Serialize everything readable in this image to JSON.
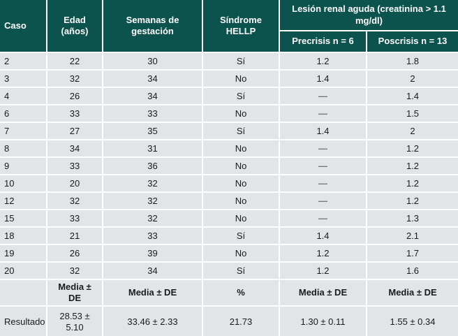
{
  "table": {
    "column_keys": [
      "caso",
      "edad",
      "semanas",
      "hellp",
      "precrisis",
      "poscrisis"
    ],
    "header": {
      "caso": "Caso",
      "edad": "Edad (años)",
      "semanas": "Semanas de gestación",
      "hellp": "Síndrome HELLP",
      "lesion_group": "Lesión renal aguda (creatinina > 1.1 mg/dl)",
      "precrisis": "Precrisis n = 6",
      "poscrisis": "Poscrisis n = 13"
    },
    "missing_symbol": "—",
    "rows": [
      [
        "2",
        "22",
        "30",
        "Sí",
        "1.2",
        "1.8"
      ],
      [
        "3",
        "32",
        "34",
        "No",
        "1.4",
        "2"
      ],
      [
        "4",
        "26",
        "34",
        "Sí",
        "—",
        "1.4"
      ],
      [
        "6",
        "33",
        "33",
        "No",
        "—",
        "1.5"
      ],
      [
        "7",
        "27",
        "35",
        "Sí",
        "1.4",
        "2"
      ],
      [
        "8",
        "34",
        "31",
        "No",
        "—",
        "1.2"
      ],
      [
        "9",
        "33",
        "36",
        "No",
        "—",
        "1.2"
      ],
      [
        "10",
        "20",
        "32",
        "No",
        "—",
        "1.2"
      ],
      [
        "12",
        "32",
        "32",
        "No",
        "—",
        "1.2"
      ],
      [
        "15",
        "33",
        "32",
        "No",
        "—",
        "1.3"
      ],
      [
        "18",
        "21",
        "33",
        "Sí",
        "1.4",
        "2.1"
      ],
      [
        "19",
        "26",
        "39",
        "No",
        "1.2",
        "1.7"
      ],
      [
        "20",
        "32",
        "34",
        "Sí",
        "1.2",
        "1.6"
      ]
    ],
    "summary_row": [
      "",
      "Media ± DE",
      "Media ± DE",
      "%",
      "Media ± DE",
      "Media ± DE"
    ],
    "result_row": [
      "Resultado",
      "28.53 ± 5.10",
      "33.46 ± 2.33",
      "21.73",
      "1.30 ± 0.11",
      "1.55 ± 0.34"
    ]
  },
  "colors": {
    "header_bg": "#0c524d",
    "row_bg": "#e1e5e7",
    "separator": "#ffffff",
    "header_text": "#ffffff",
    "body_text": "#1b1b1b",
    "dash_color": "#6f767c"
  }
}
